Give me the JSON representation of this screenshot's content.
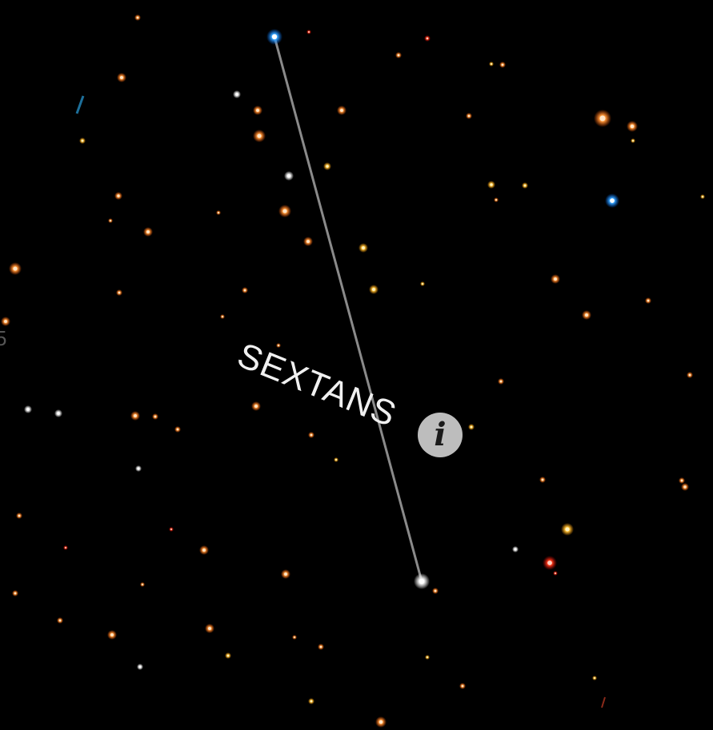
{
  "constellation": {
    "name": "SEXTANS"
  },
  "info_button": {
    "icon": "info-icon",
    "glyph": "i"
  },
  "edge_label": "5",
  "colors": {
    "background": "#000000",
    "line": "#8a8a8a",
    "info_bg": "#bdbdbd"
  }
}
